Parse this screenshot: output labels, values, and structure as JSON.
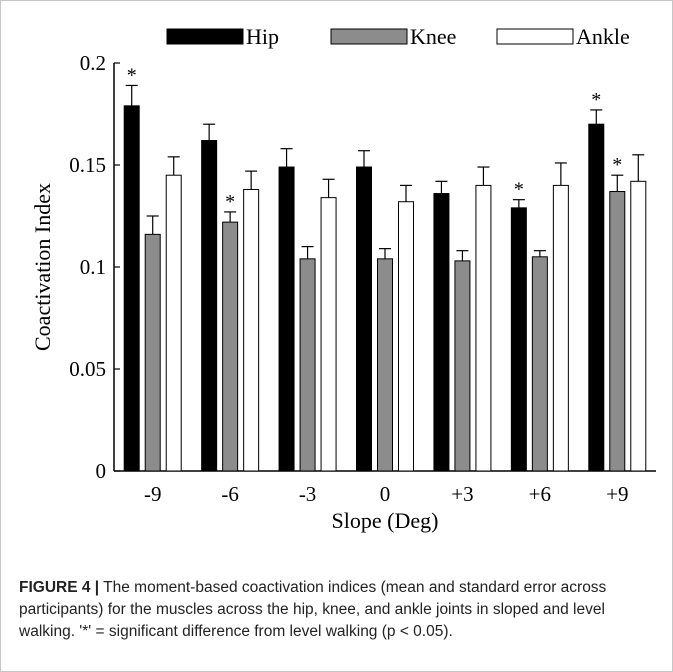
{
  "chart_data": {
    "type": "bar",
    "categories": [
      "-9",
      "-6",
      "-3",
      "0",
      "+3",
      "+6",
      "+9"
    ],
    "series": [
      {
        "name": "Hip",
        "color": "#000000",
        "values": [
          0.179,
          0.162,
          0.149,
          0.149,
          0.136,
          0.129,
          0.17
        ],
        "errors": [
          0.01,
          0.008,
          0.009,
          0.008,
          0.006,
          0.004,
          0.007
        ]
      },
      {
        "name": "Knee",
        "color": "#8c8c8c",
        "values": [
          0.116,
          0.122,
          0.104,
          0.104,
          0.103,
          0.105,
          0.137
        ],
        "errors": [
          0.009,
          0.005,
          0.006,
          0.005,
          0.005,
          0.003,
          0.008
        ]
      },
      {
        "name": "Ankle",
        "color": "#ffffff",
        "values": [
          0.145,
          0.138,
          0.134,
          0.132,
          0.14,
          0.14,
          0.142
        ],
        "errors": [
          0.009,
          0.009,
          0.009,
          0.008,
          0.009,
          0.011,
          0.013
        ]
      }
    ],
    "significance": [
      {
        "category": "-9",
        "series": "Hip",
        "marker": "*"
      },
      {
        "category": "-6",
        "series": "Knee",
        "marker": "*"
      },
      {
        "category": "+6",
        "series": "Hip",
        "marker": "*"
      },
      {
        "category": "+9",
        "series": "Hip",
        "marker": "*"
      },
      {
        "category": "+9",
        "series": "Knee",
        "marker": "*"
      }
    ],
    "xlabel": "Slope (Deg)",
    "ylabel": "Coactivation Index",
    "ylim": [
      0,
      0.2
    ],
    "yticks": [
      "0",
      "0.05",
      "0.1",
      "0.15",
      "0.2"
    ],
    "grid": false,
    "legend": "top"
  },
  "caption": {
    "label": "FIGURE 4 |",
    "text": "The moment-based coactivation indices (mean and standard error across participants) for the muscles across the hip, knee, and ankle joints in sloped and level walking. '*' = significant difference from level walking (p < 0.05)."
  }
}
